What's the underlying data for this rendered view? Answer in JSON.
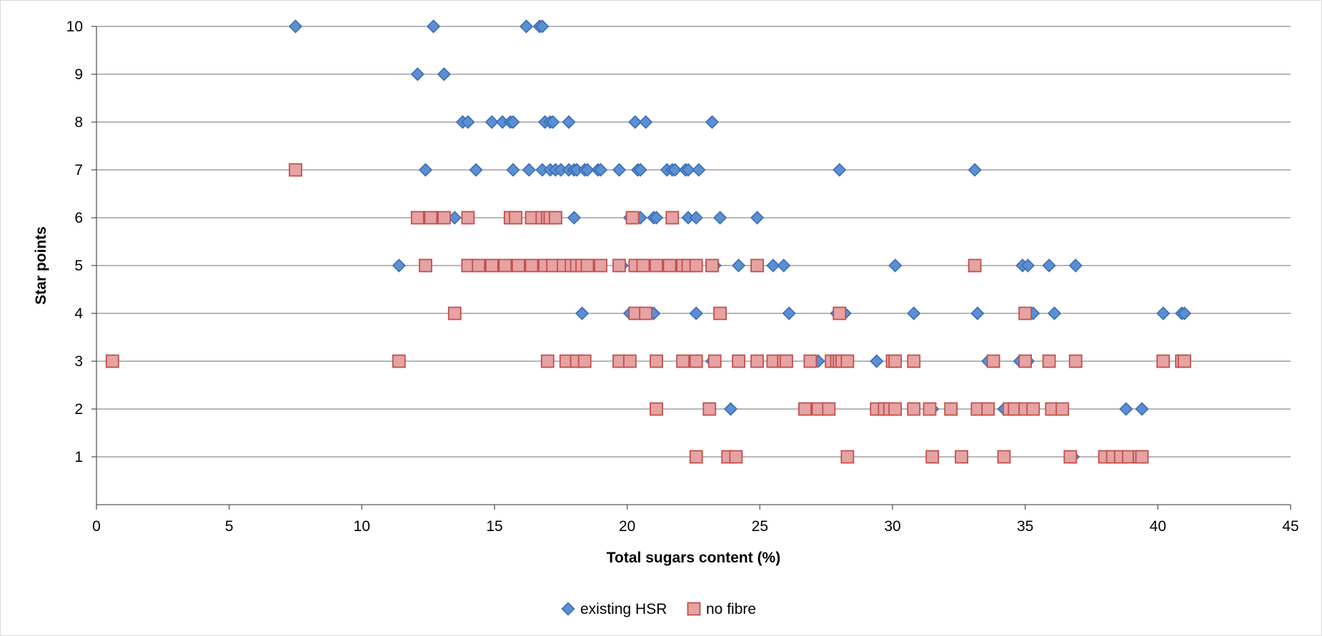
{
  "chart_data": {
    "type": "scatter",
    "title": "",
    "xlabel": "Total sugars content (%)",
    "ylabel": "Star points",
    "xlim": [
      0,
      45
    ],
    "ylim": [
      0,
      10
    ],
    "xticks": [
      0,
      5,
      10,
      15,
      20,
      25,
      30,
      35,
      40,
      45
    ],
    "yticks": [
      1,
      2,
      3,
      4,
      5,
      6,
      7,
      8,
      9,
      10
    ],
    "grid": "horizontal",
    "legend_position": "bottom",
    "series": [
      {
        "name": "existing HSR",
        "marker": "diamond",
        "color": "#5b8fd1",
        "stroke": "#3a6fb5",
        "points": [
          [
            7.5,
            10
          ],
          [
            12.7,
            10
          ],
          [
            16.2,
            10
          ],
          [
            16.7,
            10
          ],
          [
            16.8,
            10
          ],
          [
            12.1,
            9
          ],
          [
            13.1,
            9
          ],
          [
            13.8,
            8
          ],
          [
            14.0,
            8
          ],
          [
            14.9,
            8
          ],
          [
            15.3,
            8
          ],
          [
            15.6,
            8
          ],
          [
            15.7,
            8
          ],
          [
            16.9,
            8
          ],
          [
            17.1,
            8
          ],
          [
            17.2,
            8
          ],
          [
            17.8,
            8
          ],
          [
            20.3,
            8
          ],
          [
            20.7,
            8
          ],
          [
            23.2,
            8
          ],
          [
            12.4,
            7
          ],
          [
            14.3,
            7
          ],
          [
            15.7,
            7
          ],
          [
            16.3,
            7
          ],
          [
            16.8,
            7
          ],
          [
            17.1,
            7
          ],
          [
            17.3,
            7
          ],
          [
            17.5,
            7
          ],
          [
            17.8,
            7
          ],
          [
            18.0,
            7
          ],
          [
            18.1,
            7
          ],
          [
            18.4,
            7
          ],
          [
            18.5,
            7
          ],
          [
            18.9,
            7
          ],
          [
            19.0,
            7
          ],
          [
            19.7,
            7
          ],
          [
            20.4,
            7
          ],
          [
            20.5,
            7
          ],
          [
            21.5,
            7
          ],
          [
            21.7,
            7
          ],
          [
            21.8,
            7
          ],
          [
            22.2,
            7
          ],
          [
            22.3,
            7
          ],
          [
            22.7,
            7
          ],
          [
            28.0,
            7
          ],
          [
            33.1,
            7
          ],
          [
            13.5,
            6
          ],
          [
            18.0,
            6
          ],
          [
            20.1,
            6
          ],
          [
            20.5,
            6
          ],
          [
            21.0,
            6
          ],
          [
            21.1,
            6
          ],
          [
            22.3,
            6
          ],
          [
            22.6,
            6
          ],
          [
            23.5,
            6
          ],
          [
            24.9,
            6
          ],
          [
            11.4,
            5
          ],
          [
            19.8,
            5
          ],
          [
            21.3,
            5
          ],
          [
            23.3,
            5
          ],
          [
            24.2,
            5
          ],
          [
            25.5,
            5
          ],
          [
            25.9,
            5
          ],
          [
            30.1,
            5
          ],
          [
            34.9,
            5
          ],
          [
            35.1,
            5
          ],
          [
            35.9,
            5
          ],
          [
            36.9,
            5
          ],
          [
            18.3,
            4
          ],
          [
            20.1,
            4
          ],
          [
            21.0,
            4
          ],
          [
            22.6,
            4
          ],
          [
            26.1,
            4
          ],
          [
            27.9,
            4
          ],
          [
            28.2,
            4
          ],
          [
            30.8,
            4
          ],
          [
            33.2,
            4
          ],
          [
            35.3,
            4
          ],
          [
            36.1,
            4
          ],
          [
            40.2,
            4
          ],
          [
            40.9,
            4
          ],
          [
            41.0,
            4
          ],
          [
            0.6,
            3
          ],
          [
            22.6,
            3
          ],
          [
            23.2,
            3
          ],
          [
            24.2,
            3
          ],
          [
            24.9,
            3
          ],
          [
            27.2,
            3
          ],
          [
            29.4,
            3
          ],
          [
            30.8,
            3
          ],
          [
            33.6,
            3
          ],
          [
            34.8,
            3
          ],
          [
            35.1,
            3
          ],
          [
            23.9,
            2
          ],
          [
            26.7,
            2
          ],
          [
            31.5,
            2
          ],
          [
            34.2,
            2
          ],
          [
            36.3,
            2
          ],
          [
            38.8,
            2
          ],
          [
            39.4,
            2
          ],
          [
            28.3,
            1
          ],
          [
            36.7,
            1
          ],
          [
            36.8,
            1
          ]
        ]
      },
      {
        "name": "no fibre",
        "marker": "square",
        "color": "#e6a3a3",
        "stroke": "#c0504d",
        "points": [
          [
            7.5,
            7
          ],
          [
            12.1,
            6
          ],
          [
            12.6,
            6
          ],
          [
            13.1,
            6
          ],
          [
            14.0,
            6
          ],
          [
            15.6,
            6
          ],
          [
            15.8,
            6
          ],
          [
            16.4,
            6
          ],
          [
            16.8,
            6
          ],
          [
            17.0,
            6
          ],
          [
            17.1,
            6
          ],
          [
            17.3,
            6
          ],
          [
            20.2,
            6
          ],
          [
            21.7,
            6
          ],
          [
            12.4,
            5
          ],
          [
            14.0,
            5
          ],
          [
            14.4,
            5
          ],
          [
            14.9,
            5
          ],
          [
            15.4,
            5
          ],
          [
            15.9,
            5
          ],
          [
            16.4,
            5
          ],
          [
            16.9,
            5
          ],
          [
            17.2,
            5
          ],
          [
            17.6,
            5
          ],
          [
            17.9,
            5
          ],
          [
            18.1,
            5
          ],
          [
            18.3,
            5
          ],
          [
            18.5,
            5
          ],
          [
            19.0,
            5
          ],
          [
            19.7,
            5
          ],
          [
            20.3,
            5
          ],
          [
            20.6,
            5
          ],
          [
            21.1,
            5
          ],
          [
            21.6,
            5
          ],
          [
            22.1,
            5
          ],
          [
            22.3,
            5
          ],
          [
            22.6,
            5
          ],
          [
            23.2,
            5
          ],
          [
            24.9,
            5
          ],
          [
            33.1,
            5
          ],
          [
            13.5,
            4
          ],
          [
            20.3,
            4
          ],
          [
            20.7,
            4
          ],
          [
            23.5,
            4
          ],
          [
            28.0,
            4
          ],
          [
            35.0,
            4
          ],
          [
            0.6,
            3
          ],
          [
            11.4,
            3
          ],
          [
            17.0,
            3
          ],
          [
            17.7,
            3
          ],
          [
            18.1,
            3
          ],
          [
            18.4,
            3
          ],
          [
            19.7,
            3
          ],
          [
            20.1,
            3
          ],
          [
            21.1,
            3
          ],
          [
            22.1,
            3
          ],
          [
            22.6,
            3
          ],
          [
            23.3,
            3
          ],
          [
            24.2,
            3
          ],
          [
            24.9,
            3
          ],
          [
            25.5,
            3
          ],
          [
            25.9,
            3
          ],
          [
            26.0,
            3
          ],
          [
            26.9,
            3
          ],
          [
            27.7,
            3
          ],
          [
            27.9,
            3
          ],
          [
            28.0,
            3
          ],
          [
            28.1,
            3
          ],
          [
            28.3,
            3
          ],
          [
            30.0,
            3
          ],
          [
            30.1,
            3
          ],
          [
            30.8,
            3
          ],
          [
            33.8,
            3
          ],
          [
            35.0,
            3
          ],
          [
            35.9,
            3
          ],
          [
            36.9,
            3
          ],
          [
            40.2,
            3
          ],
          [
            40.9,
            3
          ],
          [
            41.0,
            3
          ],
          [
            21.1,
            2
          ],
          [
            23.1,
            2
          ],
          [
            26.7,
            2
          ],
          [
            27.2,
            2
          ],
          [
            27.6,
            2
          ],
          [
            29.4,
            2
          ],
          [
            29.7,
            2
          ],
          [
            29.9,
            2
          ],
          [
            30.1,
            2
          ],
          [
            30.8,
            2
          ],
          [
            31.4,
            2
          ],
          [
            32.2,
            2
          ],
          [
            33.2,
            2
          ],
          [
            33.6,
            2
          ],
          [
            34.4,
            2
          ],
          [
            34.6,
            2
          ],
          [
            35.0,
            2
          ],
          [
            35.3,
            2
          ],
          [
            36.0,
            2
          ],
          [
            36.4,
            2
          ],
          [
            22.6,
            1
          ],
          [
            23.8,
            1
          ],
          [
            24.1,
            1
          ],
          [
            28.3,
            1
          ],
          [
            31.5,
            1
          ],
          [
            32.6,
            1
          ],
          [
            34.2,
            1
          ],
          [
            36.7,
            1
          ],
          [
            38.0,
            1
          ],
          [
            38.3,
            1
          ],
          [
            38.6,
            1
          ],
          [
            38.9,
            1
          ],
          [
            39.3,
            1
          ],
          [
            39.4,
            1
          ]
        ]
      }
    ]
  }
}
